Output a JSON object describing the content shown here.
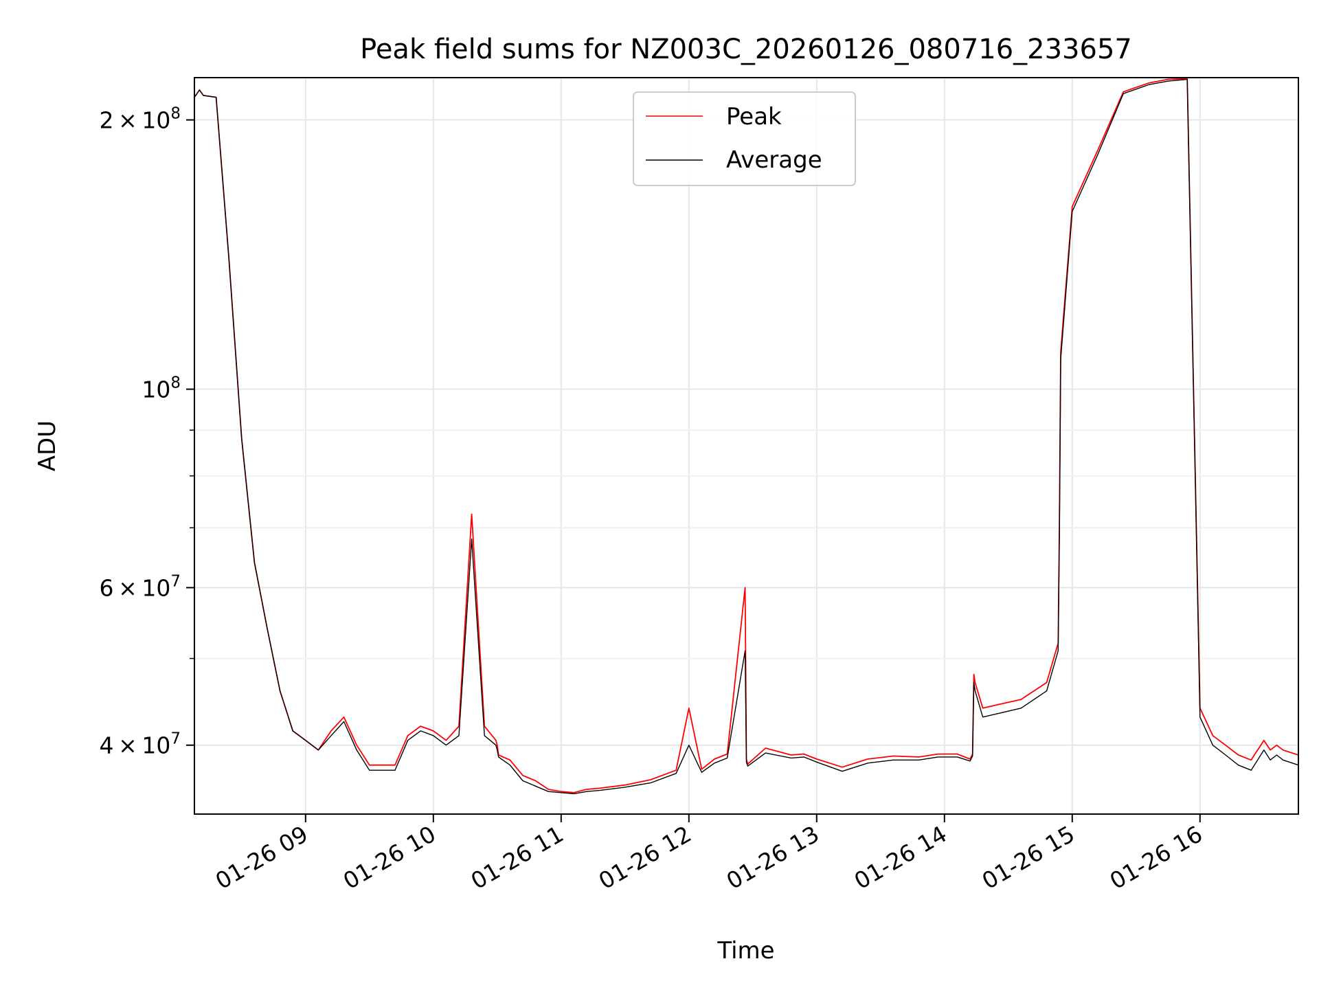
{
  "chart_data": {
    "type": "line",
    "title": "Peak field sums for NZ003C_20260126_080716_233657",
    "xlabel": "Time",
    "ylabel": "ADU",
    "x_unit": "hours since 01-26 00:00",
    "xlim": [
      8.13,
      16.77
    ],
    "ylim": [
      33500000,
      223000000
    ],
    "yscale": "log",
    "grid": true,
    "legend_position": "upper center",
    "x_ticks": [
      {
        "value": 9,
        "label": "01-26 09"
      },
      {
        "value": 10,
        "label": "01-26 10"
      },
      {
        "value": 11,
        "label": "01-26 11"
      },
      {
        "value": 12,
        "label": "01-26 12"
      },
      {
        "value": 13,
        "label": "01-26 13"
      },
      {
        "value": 14,
        "label": "01-26 14"
      },
      {
        "value": 15,
        "label": "01-26 15"
      },
      {
        "value": 16,
        "label": "01-26 16"
      }
    ],
    "y_major_ticks": [
      {
        "value": 40000000,
        "mantissa": "4",
        "exponent": "7"
      },
      {
        "value": 60000000,
        "mantissa": "6",
        "exponent": "7"
      },
      {
        "value": 100000000,
        "mantissa": "",
        "exponent": "8"
      },
      {
        "value": 200000000,
        "mantissa": "2",
        "exponent": "8"
      }
    ],
    "y_minor_ticks": [
      50000000,
      70000000,
      80000000,
      90000000
    ],
    "series": [
      {
        "name": "Peak",
        "color": "#ff0000",
        "x": [
          8.13,
          8.17,
          8.2,
          8.3,
          8.4,
          8.5,
          8.6,
          8.7,
          8.8,
          8.9,
          9.0,
          9.1,
          9.2,
          9.3,
          9.4,
          9.5,
          9.6,
          9.7,
          9.8,
          9.9,
          10.0,
          10.1,
          10.2,
          10.3,
          10.4,
          10.49,
          10.5,
          10.51,
          10.6,
          10.7,
          10.8,
          10.9,
          11.0,
          11.1,
          11.2,
          11.3,
          11.5,
          11.7,
          11.9,
          12.0,
          12.1,
          12.2,
          12.3,
          12.44,
          12.45,
          12.46,
          12.6,
          12.8,
          12.9,
          13.0,
          13.2,
          13.4,
          13.6,
          13.8,
          13.95,
          14.1,
          14.2,
          14.22,
          14.23,
          14.24,
          14.3,
          14.45,
          14.6,
          14.8,
          14.89,
          14.9,
          14.91,
          15.0,
          15.2,
          15.4,
          15.6,
          15.75,
          15.9,
          16.0,
          16.1,
          16.2,
          16.3,
          16.4,
          16.5,
          16.55,
          16.6,
          16.65,
          16.77
        ],
        "y": [
          212000000,
          216000000,
          213000000,
          212000000,
          140000000,
          88000000,
          64000000,
          54000000,
          46000000,
          41500000,
          40500000,
          39500000,
          41500000,
          43000000,
          40000000,
          38000000,
          38000000,
          38000000,
          41000000,
          42000000,
          41500000,
          40500000,
          42000000,
          72500000,
          42000000,
          40500000,
          40000000,
          39000000,
          38500000,
          37000000,
          36500000,
          35700000,
          35500000,
          35400000,
          35700000,
          35800000,
          36100000,
          36600000,
          37500000,
          44000000,
          37600000,
          38600000,
          39100000,
          60000000,
          38600000,
          38100000,
          39700000,
          39000000,
          39100000,
          38600000,
          37800000,
          38600000,
          38900000,
          38800000,
          39100000,
          39100000,
          38600000,
          39100000,
          48000000,
          47000000,
          44000000,
          44500000,
          45000000,
          47000000,
          52000000,
          72000000,
          110000000,
          160000000,
          185000000,
          215000000,
          220000000,
          222000000,
          222500000,
          44000000,
          41000000,
          40000000,
          39000000,
          38500000,
          40500000,
          39500000,
          40000000,
          39500000,
          39000000
        ]
      },
      {
        "name": "Average",
        "color": "#000000",
        "x": [
          8.13,
          8.17,
          8.2,
          8.3,
          8.4,
          8.5,
          8.6,
          8.7,
          8.8,
          8.9,
          9.0,
          9.1,
          9.2,
          9.3,
          9.4,
          9.5,
          9.6,
          9.7,
          9.8,
          9.9,
          10.0,
          10.1,
          10.2,
          10.3,
          10.4,
          10.49,
          10.5,
          10.51,
          10.6,
          10.7,
          10.8,
          10.9,
          11.0,
          11.1,
          11.2,
          11.3,
          11.5,
          11.7,
          11.9,
          12.0,
          12.1,
          12.2,
          12.3,
          12.44,
          12.45,
          12.46,
          12.6,
          12.8,
          12.9,
          13.0,
          13.2,
          13.4,
          13.6,
          13.8,
          13.95,
          14.1,
          14.2,
          14.22,
          14.23,
          14.24,
          14.3,
          14.45,
          14.6,
          14.8,
          14.89,
          14.9,
          14.91,
          15.0,
          15.2,
          15.4,
          15.6,
          15.75,
          15.9,
          16.0,
          16.1,
          16.2,
          16.3,
          16.4,
          16.5,
          16.55,
          16.6,
          16.65,
          16.77
        ],
        "y": [
          212000000,
          216000000,
          213000000,
          212000000,
          140000000,
          88000000,
          64000000,
          54000000,
          46000000,
          41500000,
          40500000,
          39500000,
          41000000,
          42500000,
          39500000,
          37500000,
          37500000,
          37500000,
          40500000,
          41500000,
          41000000,
          40000000,
          41000000,
          68000000,
          41000000,
          40000000,
          39500000,
          38800000,
          38000000,
          36500000,
          36000000,
          35500000,
          35400000,
          35300000,
          35500000,
          35600000,
          35900000,
          36300000,
          37200000,
          40000000,
          37300000,
          38200000,
          38700000,
          51000000,
          38300000,
          37900000,
          39200000,
          38700000,
          38800000,
          38300000,
          37400000,
          38200000,
          38500000,
          38500000,
          38800000,
          38800000,
          38400000,
          38900000,
          47000000,
          46000000,
          43000000,
          43500000,
          44000000,
          46000000,
          51000000,
          70000000,
          108000000,
          158000000,
          183000000,
          214000000,
          219000000,
          221000000,
          222000000,
          43000000,
          40000000,
          39000000,
          38000000,
          37500000,
          39500000,
          38500000,
          39000000,
          38500000,
          38000000
        ]
      }
    ]
  }
}
